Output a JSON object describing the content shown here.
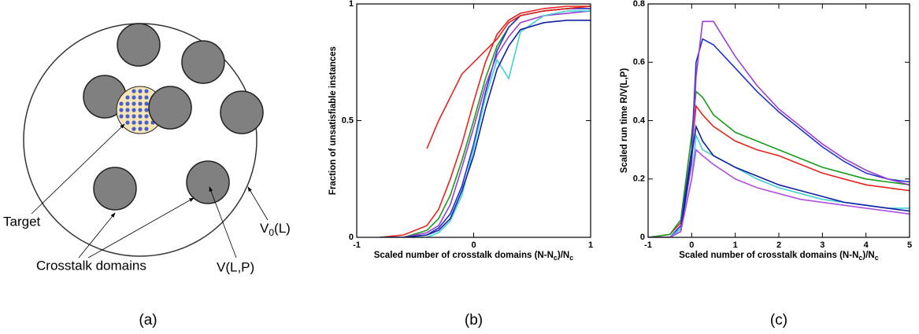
{
  "diagram": {
    "panel_label": "(a)",
    "target": "Target",
    "crosstalk": "Crosstalk domains",
    "v_lp": "V(L,P)",
    "v0": [
      "V",
      "0",
      "(L)"
    ]
  },
  "chart_data": [
    {
      "type": "line",
      "label": "(b)",
      "x_label": [
        "Scaled number of crosstalk domains (N-N",
        "c",
        ")/N",
        "c"
      ],
      "y_label": "Fraction of unsatisfiable instances",
      "xlim": [
        -1,
        1
      ],
      "ylim": [
        0,
        1
      ],
      "xticks": [
        -1,
        0,
        1
      ],
      "yticks": [
        0,
        0.5,
        1
      ],
      "x": [
        -0.8,
        -0.6,
        -0.4,
        -0.3,
        -0.2,
        -0.1,
        0,
        0.1,
        0.2,
        0.3,
        0.4,
        0.6,
        0.8,
        1
      ],
      "series": [
        {
          "color": "#e8231d",
          "values": [
            0,
            0.01,
            0.05,
            0.12,
            0.25,
            0.4,
            0.58,
            0.75,
            0.87,
            0.93,
            0.96,
            0.98,
            0.99,
            0.99
          ]
        },
        {
          "color": "#1a9a1a",
          "values": [
            0,
            0,
            0.03,
            0.08,
            0.18,
            0.33,
            0.5,
            0.68,
            0.82,
            0.9,
            0.95,
            0.97,
            0.98,
            0.99
          ]
        },
        {
          "color": "#2030d0",
          "values": [
            0,
            0,
            0.01,
            0.04,
            0.1,
            0.22,
            0.4,
            0.62,
            0.8,
            0.9,
            0.95,
            0.97,
            0.98,
            0.98
          ]
        },
        {
          "color": "#9b3fd0",
          "values": [
            0,
            0,
            0.02,
            0.05,
            0.14,
            0.3,
            0.47,
            0.65,
            0.78,
            0.86,
            0.92,
            0.95,
            0.96,
            0.97
          ]
        },
        {
          "color": "#40d0d0",
          "values": [
            0,
            0,
            0,
            0.02,
            0.07,
            0.18,
            0.38,
            0.6,
            0.76,
            0.68,
            0.88,
            0.95,
            0.97,
            0.97
          ]
        },
        {
          "color": "#e8231d",
          "values": [
            null,
            null,
            0.38,
            0.5,
            0.6,
            0.7,
            0.75,
            0.8,
            0.85,
            0.92,
            0.95,
            0.97,
            0.98,
            0.99
          ]
        },
        {
          "color": "#1020a0",
          "values": [
            0,
            0,
            0.01,
            0.03,
            0.08,
            0.2,
            0.35,
            0.55,
            0.72,
            0.82,
            0.89,
            0.92,
            0.93,
            0.93
          ]
        }
      ]
    },
    {
      "type": "line",
      "label": "(c)",
      "x_label": [
        "Scaled number of crosstalk domains (N-N",
        "c",
        ")/N",
        "c"
      ],
      "y_label": "Scaled run time R/V(L,P)",
      "xlim": [
        -1,
        5
      ],
      "ylim": [
        0,
        0.8
      ],
      "xticks": [
        -1,
        0,
        1,
        2,
        3,
        4,
        5
      ],
      "yticks": [
        0,
        0.2,
        0.4,
        0.6,
        0.8
      ],
      "x": [
        -1,
        -0.5,
        -0.25,
        0,
        0.1,
        0.25,
        0.5,
        1,
        1.5,
        2,
        2.5,
        3,
        3.5,
        4,
        4.5,
        5
      ],
      "series": [
        {
          "color": "#e8231d",
          "values": [
            0,
            0.01,
            0.05,
            0.3,
            0.45,
            0.42,
            0.38,
            0.33,
            0.3,
            0.28,
            0.25,
            0.22,
            0.2,
            0.18,
            0.17,
            0.16
          ]
        },
        {
          "color": "#1a9a1a",
          "values": [
            0,
            0.01,
            0.06,
            0.35,
            0.5,
            0.48,
            0.42,
            0.36,
            0.33,
            0.3,
            0.27,
            0.24,
            0.22,
            0.2,
            0.19,
            0.18
          ]
        },
        {
          "color": "#2030d0",
          "values": [
            0,
            0,
            0.04,
            0.3,
            0.6,
            0.68,
            0.66,
            0.58,
            0.5,
            0.43,
            0.37,
            0.31,
            0.26,
            0.22,
            0.2,
            0.19
          ]
        },
        {
          "color": "#9b3fd0",
          "values": [
            0,
            0,
            0.03,
            0.25,
            0.55,
            0.74,
            0.74,
            0.62,
            0.52,
            0.44,
            0.38,
            0.32,
            0.27,
            0.23,
            0.2,
            0.18
          ]
        },
        {
          "color": "#40d0d0",
          "values": [
            0,
            0,
            0.03,
            0.2,
            0.35,
            0.3,
            0.28,
            0.24,
            0.2,
            0.17,
            0.15,
            0.13,
            0.12,
            0.11,
            0.1,
            0.1
          ]
        },
        {
          "color": "#1020a0",
          "values": [
            0,
            0,
            0.02,
            0.28,
            0.38,
            0.33,
            0.28,
            0.24,
            0.21,
            0.18,
            0.16,
            0.14,
            0.12,
            0.11,
            0.1,
            0.09
          ]
        },
        {
          "color": "#b050e0",
          "values": [
            0,
            0,
            0.02,
            0.2,
            0.3,
            0.28,
            0.25,
            0.2,
            0.17,
            0.15,
            0.13,
            0.12,
            0.11,
            0.1,
            0.09,
            0.08
          ]
        }
      ]
    }
  ]
}
